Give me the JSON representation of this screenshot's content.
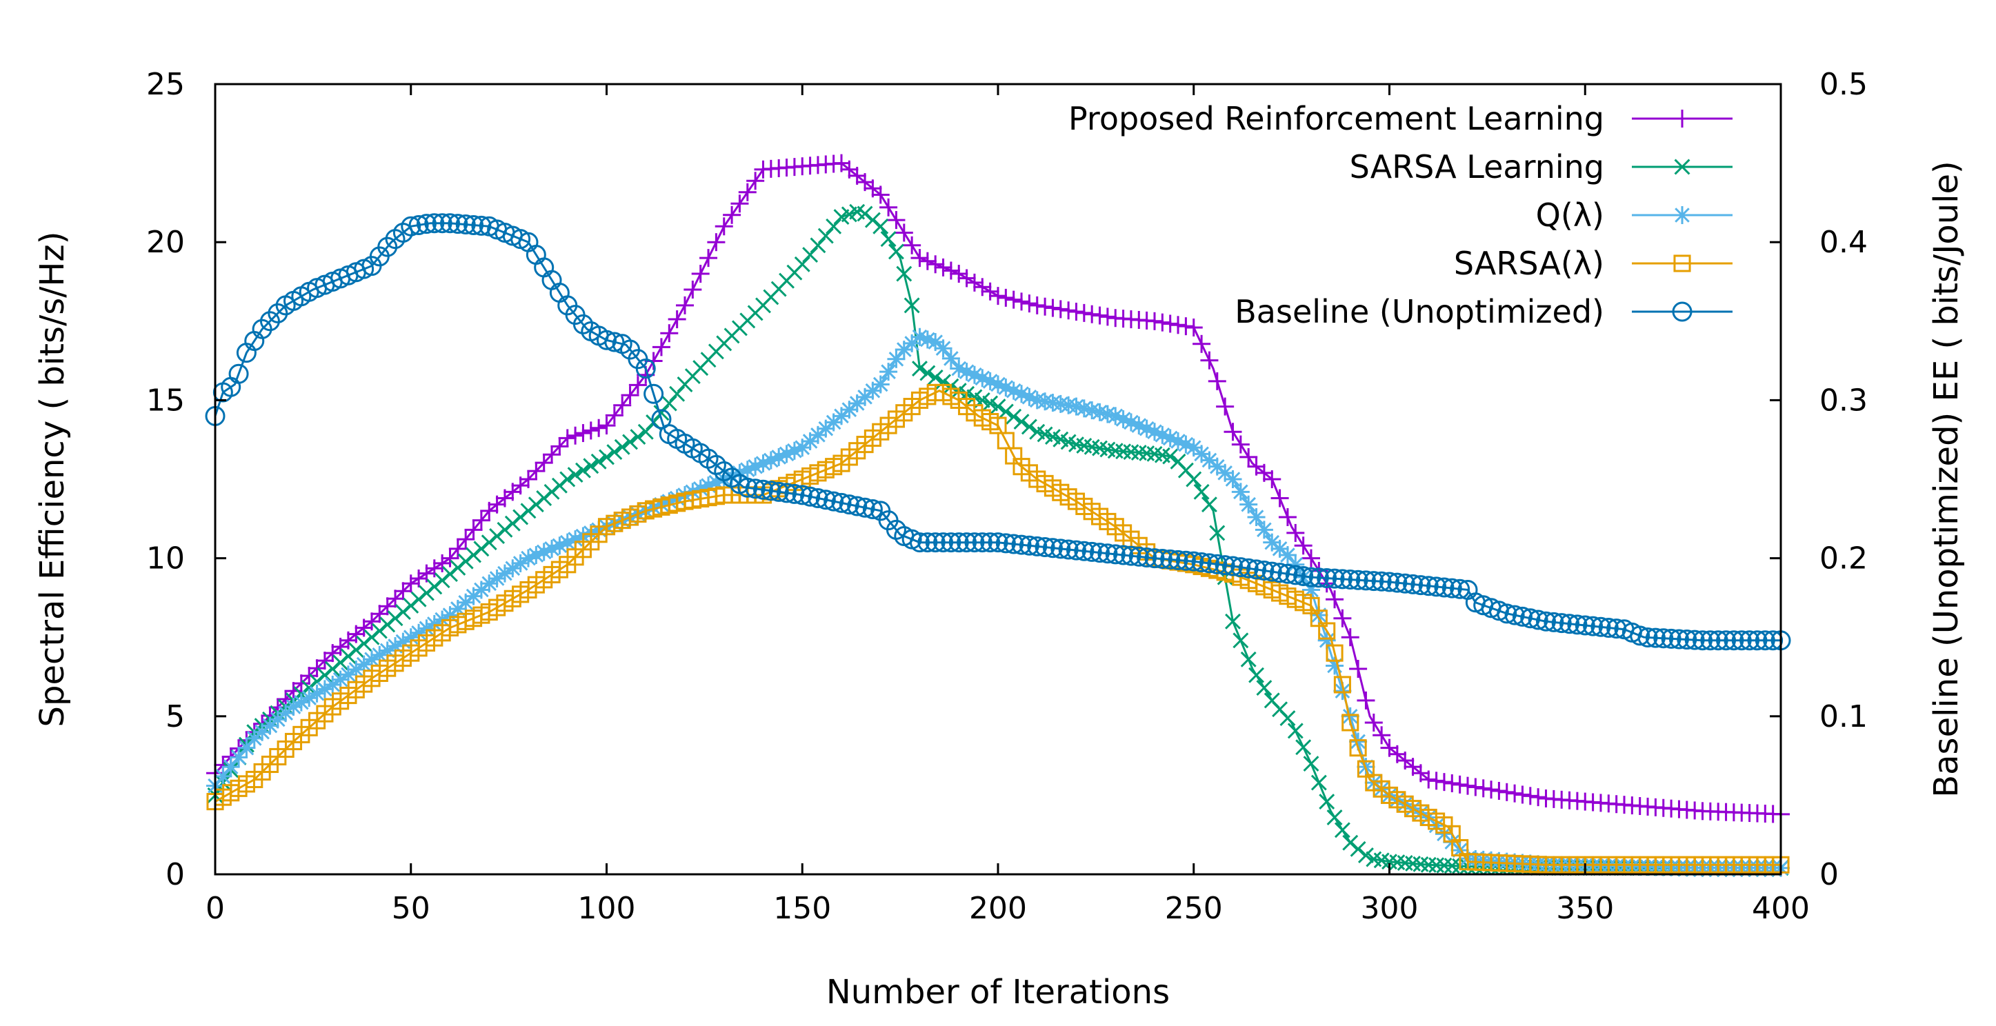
{
  "chart_data": {
    "type": "line",
    "title": "",
    "xlabel": "Number of Iterations",
    "ylabel": "Spectral Efficiency ( bits/s/Hz)",
    "y2label": "Baseline (Unoptimized) EE ( bits/Joule)",
    "xlim": [
      0,
      400
    ],
    "ylim": [
      0,
      25
    ],
    "y2lim": [
      0,
      0.5
    ],
    "xticks": [
      0,
      50,
      100,
      150,
      200,
      250,
      300,
      350,
      400
    ],
    "yticks": [
      0,
      5,
      10,
      15,
      20,
      25
    ],
    "y2ticks": [
      0,
      0.1,
      0.2,
      0.3,
      0.4,
      0.5
    ],
    "xtick_labels": [
      "0",
      "50",
      "100",
      "150",
      "200",
      "250",
      "300",
      "350",
      "400"
    ],
    "ytick_labels": [
      "0",
      "5",
      "10",
      "15",
      "20",
      "25"
    ],
    "y2tick_labels": [
      "0",
      "0.1",
      "0.2",
      "0.3",
      "0.4",
      "0.5"
    ],
    "grid": false,
    "legend_position": "top-right",
    "series": [
      {
        "name": "Proposed Reinforcement Learning",
        "color": "#9400d3",
        "marker": "plus",
        "axis": "y",
        "x": [
          0,
          10,
          20,
          30,
          40,
          50,
          60,
          70,
          80,
          90,
          100,
          110,
          120,
          130,
          140,
          150,
          160,
          165,
          170,
          175,
          180,
          190,
          200,
          210,
          220,
          230,
          240,
          250,
          255,
          260,
          265,
          270,
          275,
          280,
          285,
          290,
          295,
          300,
          310,
          320,
          340,
          360,
          380,
          400
        ],
        "values": [
          3.2,
          4.5,
          5.8,
          7.0,
          8.0,
          9.2,
          10.0,
          11.5,
          12.5,
          13.8,
          14.2,
          15.8,
          18.0,
          20.5,
          22.3,
          22.4,
          22.5,
          22.0,
          21.5,
          20.5,
          19.5,
          19.0,
          18.3,
          18.0,
          17.8,
          17.6,
          17.5,
          17.3,
          16.0,
          14.0,
          13.0,
          12.5,
          11.0,
          10.0,
          9.0,
          7.5,
          5.0,
          4.0,
          3.0,
          2.8,
          2.4,
          2.2,
          2.0,
          1.9
        ]
      },
      {
        "name": "SARSA Learning",
        "color": "#009e73",
        "marker": "cross",
        "axis": "y",
        "x": [
          0,
          10,
          20,
          30,
          40,
          50,
          60,
          70,
          80,
          90,
          100,
          110,
          120,
          130,
          140,
          150,
          160,
          165,
          170,
          175,
          178,
          180,
          190,
          200,
          210,
          220,
          230,
          240,
          245,
          250,
          255,
          260,
          265,
          270,
          275,
          280,
          285,
          290,
          295,
          300,
          310,
          320,
          340,
          360,
          380,
          400
        ],
        "values": [
          2.5,
          4.5,
          5.5,
          6.5,
          7.5,
          8.5,
          9.5,
          10.5,
          11.5,
          12.5,
          13.2,
          14.0,
          15.5,
          16.8,
          18.0,
          19.3,
          20.8,
          21.0,
          20.5,
          19.5,
          18.0,
          16.0,
          15.3,
          14.8,
          14.0,
          13.6,
          13.4,
          13.3,
          13.2,
          12.5,
          11.5,
          8.0,
          6.5,
          5.5,
          4.8,
          3.5,
          2.0,
          1.0,
          0.5,
          0.4,
          0.3,
          0.25,
          0.2,
          0.2,
          0.2,
          0.2
        ]
      },
      {
        "name": "Q(λ)",
        "color": "#56b4e9",
        "marker": "star",
        "axis": "y",
        "x": [
          0,
          10,
          20,
          30,
          40,
          50,
          60,
          70,
          80,
          90,
          100,
          110,
          120,
          130,
          140,
          150,
          160,
          170,
          175,
          180,
          185,
          190,
          200,
          210,
          220,
          230,
          240,
          250,
          255,
          260,
          265,
          270,
          275,
          280,
          285,
          290,
          295,
          300,
          310,
          320,
          340,
          360,
          380,
          400
        ],
        "values": [
          2.8,
          4.3,
          5.3,
          6.0,
          6.8,
          7.5,
          8.2,
          9.2,
          10.0,
          10.5,
          11.0,
          11.5,
          12.0,
          12.5,
          13.0,
          13.5,
          14.5,
          15.5,
          16.5,
          17.0,
          16.8,
          16.0,
          15.5,
          15.0,
          14.8,
          14.5,
          14.0,
          13.5,
          13.0,
          12.5,
          11.5,
          10.5,
          10.0,
          9.0,
          7.0,
          5.0,
          3.0,
          2.5,
          1.8,
          0.5,
          0.3,
          0.25,
          0.2,
          0.2
        ]
      },
      {
        "name": "SARSA(λ)",
        "color": "#e69f00",
        "marker": "square",
        "axis": "y",
        "x": [
          0,
          10,
          20,
          30,
          40,
          50,
          60,
          70,
          80,
          90,
          100,
          110,
          120,
          130,
          140,
          150,
          160,
          170,
          180,
          185,
          190,
          195,
          200,
          205,
          210,
          220,
          230,
          240,
          250,
          260,
          270,
          280,
          285,
          288,
          290,
          292,
          295,
          300,
          310,
          315,
          320,
          340,
          360,
          380,
          400
        ],
        "values": [
          2.3,
          3.0,
          4.2,
          5.3,
          6.2,
          7.0,
          7.8,
          8.3,
          9.0,
          9.8,
          11.0,
          11.5,
          11.8,
          12.0,
          12.0,
          12.5,
          13.0,
          14.0,
          15.0,
          15.3,
          15.0,
          14.5,
          14.2,
          13.0,
          12.5,
          11.8,
          11.0,
          10.0,
          9.8,
          9.5,
          9.0,
          8.5,
          7.5,
          6.0,
          4.8,
          4.0,
          3.0,
          2.5,
          1.8,
          1.5,
          0.4,
          0.3,
          0.3,
          0.3,
          0.3
        ]
      },
      {
        "name": "Baseline (Unoptimized)",
        "color": "#0072b2",
        "marker": "circle",
        "axis": "y2",
        "x": [
          0,
          2,
          5,
          8,
          12,
          18,
          25,
          35,
          40,
          45,
          50,
          55,
          60,
          70,
          80,
          85,
          90,
          95,
          100,
          105,
          110,
          115,
          125,
          135,
          150,
          160,
          170,
          175,
          180,
          200,
          220,
          240,
          250,
          260,
          280,
          300,
          320,
          322,
          330,
          340,
          360,
          365,
          380,
          400
        ],
        "values": [
          0.29,
          0.305,
          0.31,
          0.33,
          0.345,
          0.36,
          0.37,
          0.38,
          0.385,
          0.4,
          0.41,
          0.412,
          0.412,
          0.41,
          0.4,
          0.38,
          0.36,
          0.345,
          0.338,
          0.335,
          0.32,
          0.28,
          0.265,
          0.245,
          0.24,
          0.235,
          0.23,
          0.215,
          0.21,
          0.21,
          0.205,
          0.2,
          0.198,
          0.195,
          0.188,
          0.185,
          0.18,
          0.172,
          0.165,
          0.16,
          0.155,
          0.15,
          0.148,
          0.148
        ]
      }
    ]
  }
}
